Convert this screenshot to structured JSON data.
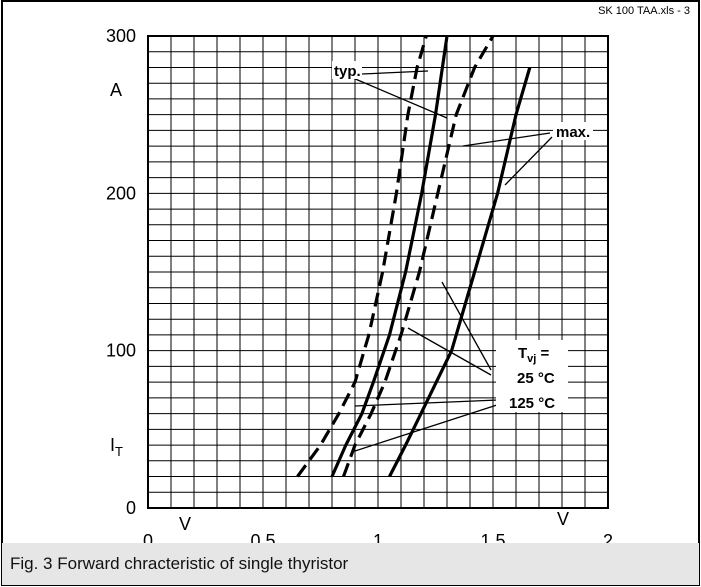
{
  "file_label": "SK 100 TAA.xls - 3",
  "caption": "Fig. 3 Forward chracteristic of single thyristor",
  "chart_data": {
    "type": "line",
    "xlabel": "V",
    "ylabel": "A",
    "y_symbol": "I",
    "y_symbol_sub": "T",
    "xlim": [
      0,
      2
    ],
    "ylim": [
      0,
      300
    ],
    "x_ticks": [
      0,
      0.5,
      1,
      1.5,
      2
    ],
    "x_tick_labels": [
      "0",
      "0,5",
      "1",
      "1,5",
      "2"
    ],
    "y_ticks": [
      0,
      100,
      200,
      300
    ],
    "y_tick_labels": [
      "0",
      "100",
      "200",
      "300"
    ],
    "grid": true,
    "annotations": {
      "typ": "typ.",
      "max": "max.",
      "tvj_main": "T",
      "tvj_sub": "vj",
      "tvj_eq": " =",
      "t25": "25 °C",
      "t125": "125 °C"
    },
    "series": [
      {
        "style": "dashed",
        "x": [
          0.65,
          0.75,
          0.83,
          0.9,
          0.96,
          1.02,
          1.08,
          1.13,
          1.17,
          1.21
        ],
        "y": [
          20,
          40,
          60,
          80,
          110,
          150,
          200,
          250,
          280,
          300
        ]
      },
      {
        "style": "solid",
        "x": [
          0.8,
          0.86,
          0.93,
          0.98,
          1.05,
          1.12,
          1.19,
          1.25,
          1.3
        ],
        "y": [
          20,
          40,
          60,
          80,
          110,
          150,
          200,
          250,
          300
        ]
      },
      {
        "style": "dashed",
        "x": [
          0.85,
          0.9,
          0.97,
          1.03,
          1.1,
          1.18,
          1.26,
          1.34,
          1.42,
          1.5
        ],
        "y": [
          20,
          40,
          60,
          80,
          110,
          150,
          200,
          250,
          280,
          300
        ]
      },
      {
        "style": "solid",
        "x": [
          1.05,
          1.12,
          1.22,
          1.32,
          1.42,
          1.52,
          1.6,
          1.66
        ],
        "y": [
          20,
          40,
          70,
          100,
          150,
          200,
          250,
          280
        ]
      }
    ]
  }
}
